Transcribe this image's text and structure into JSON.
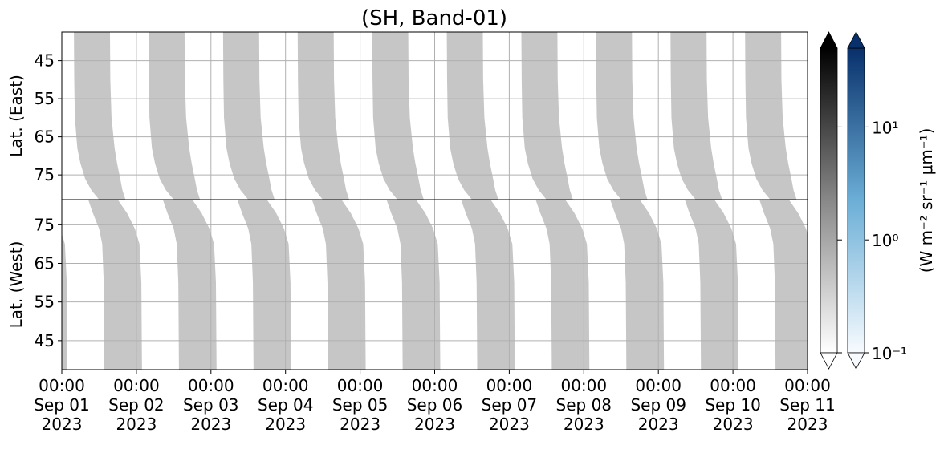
{
  "chart_data": {
    "type": "swath",
    "title": "(SH, Band-01)",
    "xlim": [
      0,
      10
    ],
    "xticks": [
      {
        "value": 0,
        "label": "00:00\nSep 01\n2023"
      },
      {
        "value": 1,
        "label": "00:00\nSep 02\n2023"
      },
      {
        "value": 2,
        "label": "00:00\nSep 03\n2023"
      },
      {
        "value": 3,
        "label": "00:00\nSep 04\n2023"
      },
      {
        "value": 4,
        "label": "00:00\nSep 05\n2023"
      },
      {
        "value": 5,
        "label": "00:00\nSep 06\n2023"
      },
      {
        "value": 6,
        "label": "00:00\nSep 07\n2023"
      },
      {
        "value": 7,
        "label": "00:00\nSep 08\n2023"
      },
      {
        "value": 8,
        "label": "00:00\nSep 09\n2023"
      },
      {
        "value": 9,
        "label": "00:00\nSep 10\n2023"
      },
      {
        "value": 10,
        "label": "00:00\nSep 11\n2023"
      }
    ],
    "grid": true,
    "panels": [
      {
        "ylabel": "Lat. (East)",
        "ylim": [
          81.5,
          37.5
        ],
        "yticks": [
          45,
          55,
          65,
          75
        ],
        "swath": {
          "lat": [
            37.5,
            50,
            60,
            68,
            72,
            76,
            79,
            81.5
          ],
          "start_hour": [
            3.9,
            4.0,
            4.2,
            5.0,
            6.0,
            7.5,
            9.5,
            12.0
          ],
          "end_hour": [
            15.5,
            15.6,
            16.0,
            17.0,
            17.8,
            18.8,
            19.5,
            20.5
          ]
        }
      },
      {
        "ylabel": "Lat. (West)",
        "ylim": [
          37.5,
          81.5
        ],
        "yticks": [
          75,
          65,
          55,
          45
        ],
        "swath": {
          "lat": [
            81.5,
            78,
            74,
            70,
            60,
            37.5
          ],
          "start_hour": [
            8.5,
            10.0,
            12.0,
            13.0,
            13.5,
            13.7
          ],
          "end_hour": [
            18.0,
            21.0,
            23.5,
            25.0,
            25.6,
            25.8
          ]
        }
      }
    ],
    "color": "#c6c6c6",
    "colorbar_scale": "log",
    "clim": [
      0.1,
      50
    ],
    "cticks": [
      {
        "value": 0.1,
        "label": "10⁻¹"
      },
      {
        "value": 1,
        "label": "10⁰"
      },
      {
        "value": 10,
        "label": "10¹"
      }
    ],
    "colorbar_label": "(W m⁻² sr⁻¹ μm⁻¹)",
    "colorbars": [
      {
        "colors": [
          "#ffffff",
          "#888888",
          "#000000"
        ]
      },
      {
        "colors": [
          "#f7fbff",
          "#6baed6",
          "#08306b"
        ]
      }
    ]
  }
}
